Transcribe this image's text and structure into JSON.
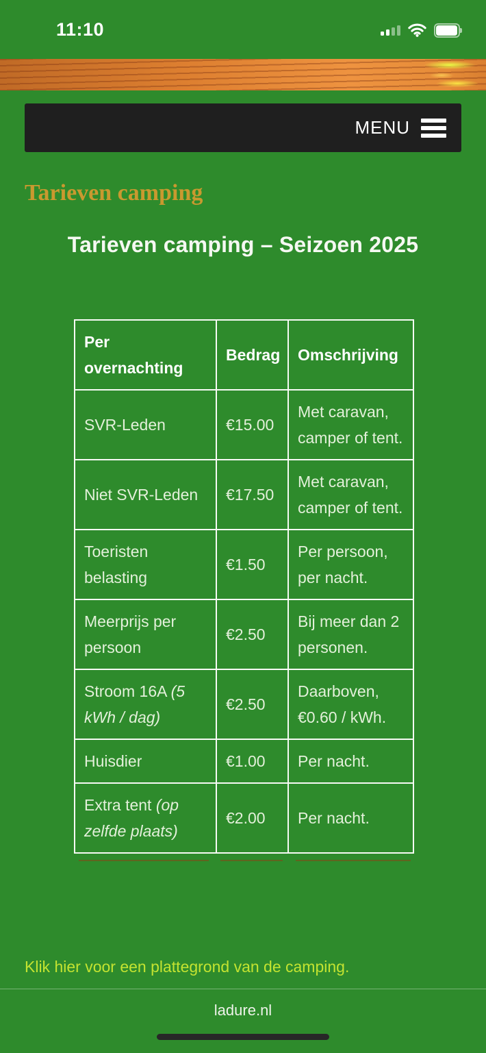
{
  "status_bar": {
    "time": "11:10"
  },
  "menu_bar": {
    "menu_label": "MENU"
  },
  "content": {
    "eyebrow_heading": "Tarieven camping",
    "page_title": "Tarieven camping – Seizoen 2025",
    "table": {
      "headers": [
        "Per overnachting",
        "Bedrag",
        "Omschrijving"
      ],
      "rows": [
        {
          "item": "SVR-Leden",
          "item_italic": "",
          "amount": "€15.00",
          "description": "Met caravan, camper of tent."
        },
        {
          "item": "Niet SVR-Leden",
          "item_italic": "",
          "amount": "€17.50",
          "description": "Met caravan, camper of tent."
        },
        {
          "item": "Toeristen belasting",
          "item_italic": "",
          "amount": "€1.50",
          "description": "Per persoon, per nacht."
        },
        {
          "item": "Meerprijs per persoon",
          "item_italic": "",
          "amount": "€2.50",
          "description": "Bij meer dan 2 personen."
        },
        {
          "item": "Stroom 16A ",
          "item_italic": "(5 kWh / dag)",
          "amount": "€2.50",
          "description": "Daarboven, €0.60 / kWh."
        },
        {
          "item": "Huisdier",
          "item_italic": "",
          "amount": "€1.00",
          "description": "Per nacht."
        },
        {
          "item": "Extra tent ",
          "item_italic": "(op zelfde plaats)",
          "amount": "€2.00",
          "description": "Per nacht."
        }
      ]
    },
    "map_link": "Klik hier voor een plattegrond van de camping."
  },
  "footer": {
    "site_name": "ladure.nl"
  },
  "colors": {
    "page_green": "#2e8b2c",
    "accent_gold": "#c9992f",
    "link_yellow": "#c3e331",
    "menu_dark": "#1f1f1f"
  }
}
